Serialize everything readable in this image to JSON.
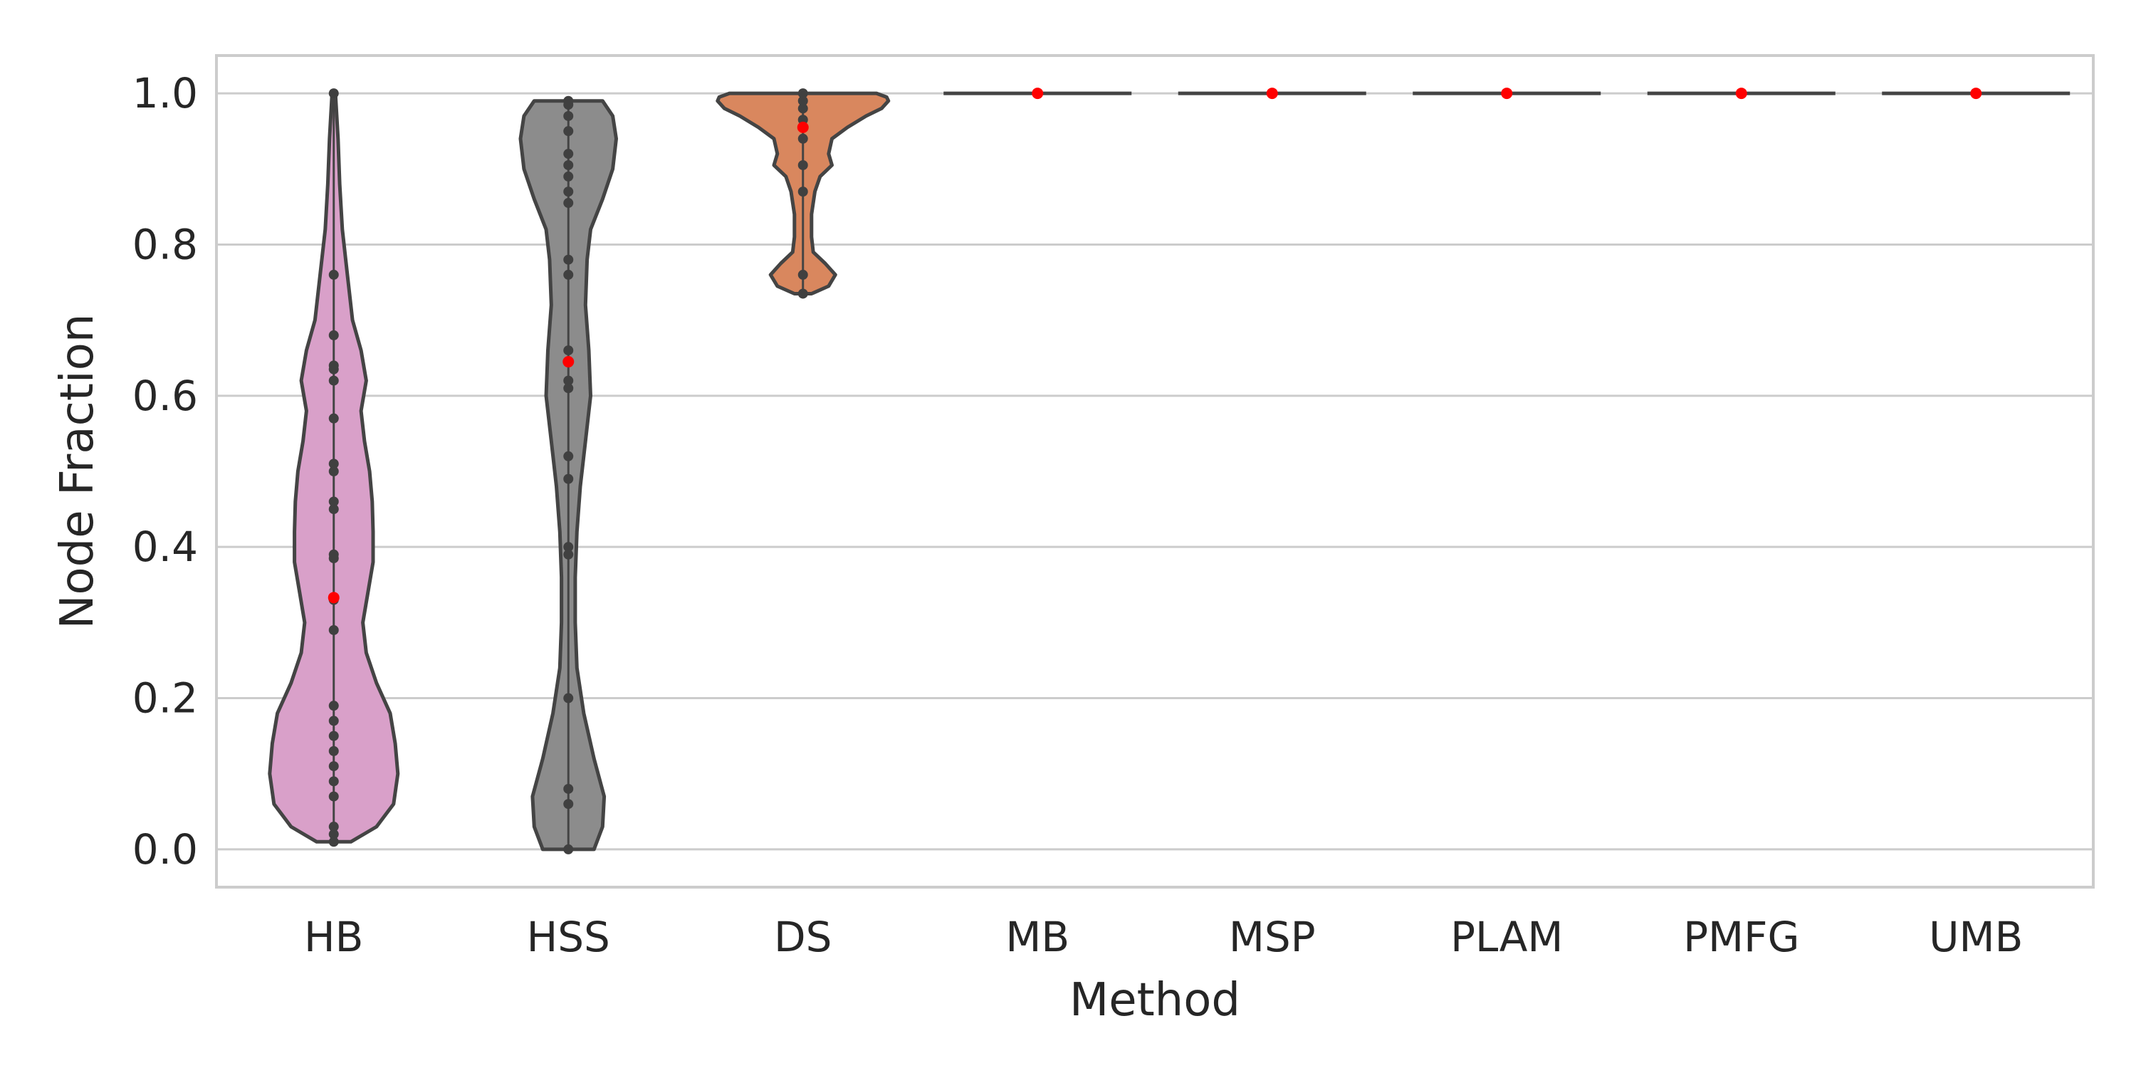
{
  "chart_data": {
    "type": "violin",
    "xlabel": "Method",
    "ylabel": "Node Fraction",
    "ylim": [
      -0.05,
      1.05
    ],
    "yticks": [
      0.0,
      0.2,
      0.4,
      0.6,
      0.8,
      1.0
    ],
    "ytick_labels": [
      "0.0",
      "0.2",
      "0.4",
      "0.6",
      "0.8",
      "1.0"
    ],
    "grid": "horizontal",
    "colors": {
      "HB": "#d9a0c9",
      "HSS": "#8c8c8c",
      "DS": "#d9875e",
      "outline": "#444444",
      "points": "#404040",
      "median_marker": "#ff0000",
      "grid": "#cccccc",
      "frame": "#cccccc"
    },
    "categories": [
      "HB",
      "HSS",
      "DS",
      "MB",
      "MSP",
      "PLAM",
      "PMFG",
      "UMB"
    ],
    "violins": [
      {
        "category": "HB",
        "range": [
          0.01,
          1.0
        ],
        "density": [
          [
            0.01,
            0.2
          ],
          [
            0.03,
            0.5
          ],
          [
            0.06,
            0.7
          ],
          [
            0.1,
            0.75
          ],
          [
            0.14,
            0.72
          ],
          [
            0.18,
            0.66
          ],
          [
            0.22,
            0.5
          ],
          [
            0.26,
            0.38
          ],
          [
            0.3,
            0.34
          ],
          [
            0.34,
            0.4
          ],
          [
            0.38,
            0.46
          ],
          [
            0.42,
            0.46
          ],
          [
            0.46,
            0.45
          ],
          [
            0.5,
            0.42
          ],
          [
            0.54,
            0.36
          ],
          [
            0.58,
            0.32
          ],
          [
            0.62,
            0.38
          ],
          [
            0.66,
            0.32
          ],
          [
            0.7,
            0.22
          ],
          [
            0.76,
            0.16
          ],
          [
            0.82,
            0.1
          ],
          [
            0.88,
            0.07
          ],
          [
            0.94,
            0.05
          ],
          [
            1.0,
            0.02
          ]
        ],
        "points": [
          0.01,
          0.02,
          0.03,
          0.07,
          0.09,
          0.11,
          0.13,
          0.15,
          0.17,
          0.19,
          0.29,
          0.33,
          0.385,
          0.39,
          0.45,
          0.46,
          0.5,
          0.51,
          0.57,
          0.62,
          0.635,
          0.64,
          0.68,
          0.76,
          1.0
        ],
        "median": 0.333
      },
      {
        "category": "HSS",
        "range": [
          0.0,
          0.99
        ],
        "density": [
          [
            0.0,
            0.3
          ],
          [
            0.03,
            0.4
          ],
          [
            0.07,
            0.42
          ],
          [
            0.12,
            0.3
          ],
          [
            0.18,
            0.18
          ],
          [
            0.24,
            0.1
          ],
          [
            0.3,
            0.08
          ],
          [
            0.36,
            0.08
          ],
          [
            0.42,
            0.1
          ],
          [
            0.48,
            0.14
          ],
          [
            0.54,
            0.2
          ],
          [
            0.6,
            0.26
          ],
          [
            0.66,
            0.24
          ],
          [
            0.72,
            0.2
          ],
          [
            0.78,
            0.22
          ],
          [
            0.82,
            0.26
          ],
          [
            0.86,
            0.4
          ],
          [
            0.9,
            0.52
          ],
          [
            0.94,
            0.56
          ],
          [
            0.97,
            0.52
          ],
          [
            0.99,
            0.4
          ]
        ],
        "points": [
          0.0,
          0.06,
          0.08,
          0.2,
          0.39,
          0.4,
          0.49,
          0.52,
          0.61,
          0.62,
          0.645,
          0.66,
          0.76,
          0.78,
          0.855,
          0.87,
          0.89,
          0.905,
          0.92,
          0.95,
          0.97,
          0.985,
          0.99
        ],
        "median": 0.645
      },
      {
        "category": "DS",
        "range": [
          0.735,
          1.0
        ],
        "density": [
          [
            0.735,
            0.1
          ],
          [
            0.745,
            0.3
          ],
          [
            0.76,
            0.38
          ],
          [
            0.775,
            0.26
          ],
          [
            0.79,
            0.12
          ],
          [
            0.81,
            0.1
          ],
          [
            0.84,
            0.1
          ],
          [
            0.87,
            0.14
          ],
          [
            0.89,
            0.2
          ],
          [
            0.905,
            0.34
          ],
          [
            0.92,
            0.3
          ],
          [
            0.94,
            0.34
          ],
          [
            0.955,
            0.52
          ],
          [
            0.97,
            0.74
          ],
          [
            0.98,
            0.92
          ],
          [
            0.99,
            1.0
          ],
          [
            0.995,
            0.98
          ],
          [
            1.0,
            0.86
          ]
        ],
        "points": [
          0.735,
          0.76,
          0.87,
          0.905,
          0.94,
          0.955,
          0.965,
          0.98,
          0.99,
          1.0
        ],
        "median": 0.955
      },
      {
        "category": "MB",
        "range": [
          1.0,
          1.0
        ],
        "density": [],
        "points": [
          1.0
        ],
        "median": 1.0
      },
      {
        "category": "MSP",
        "range": [
          1.0,
          1.0
        ],
        "density": [],
        "points": [
          1.0
        ],
        "median": 1.0
      },
      {
        "category": "PLAM",
        "range": [
          1.0,
          1.0
        ],
        "density": [],
        "points": [
          1.0
        ],
        "median": 1.0
      },
      {
        "category": "PMFG",
        "range": [
          1.0,
          1.0
        ],
        "density": [],
        "points": [
          1.0
        ],
        "median": 1.0
      },
      {
        "category": "UMB",
        "range": [
          1.0,
          1.0
        ],
        "density": [],
        "points": [
          1.0
        ],
        "median": 1.0
      }
    ]
  }
}
